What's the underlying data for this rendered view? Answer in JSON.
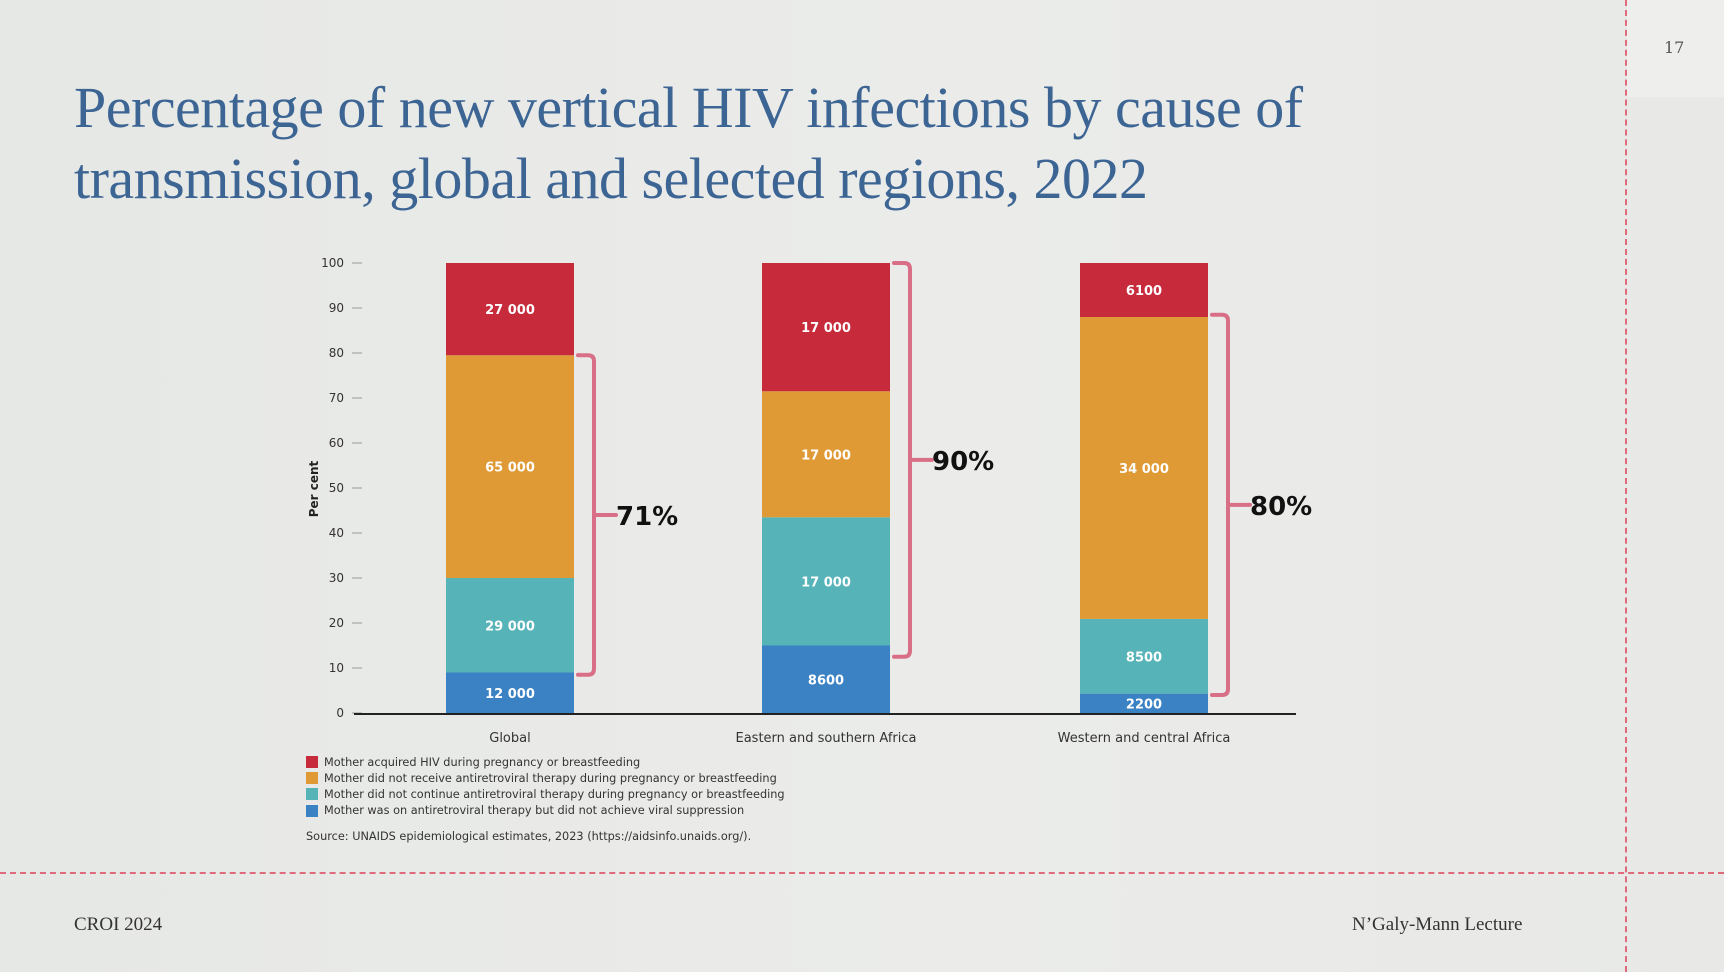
{
  "slide": {
    "number": "17",
    "title_line1": "Percentage of new vertical HIV infections by cause of",
    "title_line2": "transmission, global and selected regions, 2022",
    "footer_left": "CROI 2024",
    "footer_right": "N’Galy-Mann Lecture",
    "source": "Source: UNAIDS epidemiological estimates, 2023 (https://aidsinfo.unaids.org/)."
  },
  "chart_data": {
    "type": "bar",
    "stacked": true,
    "ylabel": "Per cent",
    "xlabel": "",
    "ylim": [
      0,
      100
    ],
    "yticks": [
      "0",
      "10",
      "20",
      "30",
      "40",
      "50",
      "60",
      "70",
      "80",
      "90",
      "100"
    ],
    "categories": [
      "Global",
      "Eastern and southern Africa",
      "Western and central Africa"
    ],
    "series": [
      {
        "name": "Mother was on antiretroviral therapy but did not achieve viral suppression",
        "color": "#3a82c4",
        "values": [
          9,
          15,
          4.3
        ],
        "labels": [
          "12 000",
          "8600",
          "2200"
        ]
      },
      {
        "name": "Mother did not continue antiretroviral therapy during pregnancy or breastfeeding",
        "color": "#56b3b8",
        "values": [
          21,
          28.5,
          16.6
        ],
        "labels": [
          "29 000",
          "17 000",
          "8500"
        ]
      },
      {
        "name": "Mother did not receive antiretroviral therapy during pregnancy or breastfeeding",
        "color": "#e09a35",
        "values": [
          49.5,
          28,
          67.1
        ],
        "labels": [
          "65 000",
          "17 000",
          "34 000"
        ]
      },
      {
        "name": "Mother acquired HIV during pregnancy or breastfeeding",
        "color": "#c72b3b",
        "values": [
          20.5,
          28.5,
          12
        ],
        "labels": [
          "27 000",
          "17 000",
          "6100"
        ]
      }
    ],
    "annotations": [
      {
        "category": "Global",
        "text": "71%",
        "from": 8.5,
        "to": 79.5
      },
      {
        "category": "Eastern and southern Africa",
        "text": "90%",
        "from": 12.5,
        "to": 100
      },
      {
        "category": "Western and central Africa",
        "text": "80%",
        "from": 4,
        "to": 88.5
      }
    ],
    "annotation_color": "#d96f86",
    "legend_position": "bottom-left",
    "legend_order": [
      3,
      2,
      1,
      0
    ],
    "grid": false
  }
}
